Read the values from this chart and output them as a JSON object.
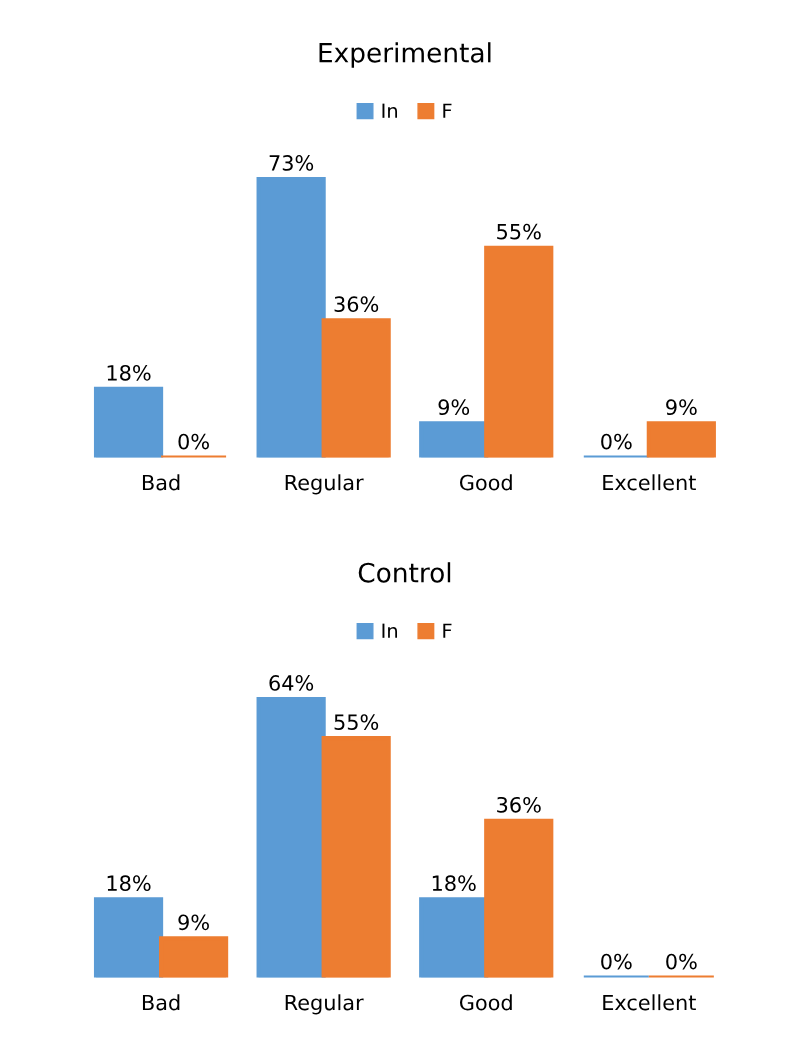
{
  "chart_data": [
    {
      "type": "bar",
      "title": "Experimental",
      "categories": [
        "Bad",
        "Regular",
        "Good",
        "Excellent"
      ],
      "legend": "top",
      "tick_labels": "x",
      "grid": false,
      "series": [
        {
          "name": "In",
          "color": "#5b9bd5",
          "values": [
            18,
            73,
            9,
            0
          ],
          "value_labels": [
            "18%",
            "73%",
            "9%",
            "0%"
          ]
        },
        {
          "name": "F",
          "color": "#ed7d31",
          "values": [
            0,
            36,
            55,
            9
          ],
          "value_labels": [
            "0%",
            "36%",
            "55%",
            "9%"
          ]
        }
      ]
    },
    {
      "type": "bar",
      "title": "Control",
      "categories": [
        "Bad",
        "Regular",
        "Good",
        "Excellent"
      ],
      "legend": "top",
      "tick_labels": "x",
      "grid": false,
      "series": [
        {
          "name": "In",
          "color": "#5b9bd5",
          "values": [
            18,
            64,
            18,
            0
          ],
          "value_labels": [
            "18%",
            "64%",
            "18%",
            "0%"
          ]
        },
        {
          "name": "F",
          "color": "#ed7d31",
          "values": [
            9,
            55,
            36,
            0
          ],
          "value_labels": [
            "9%",
            "55%",
            "36%",
            "0%"
          ]
        }
      ]
    }
  ]
}
